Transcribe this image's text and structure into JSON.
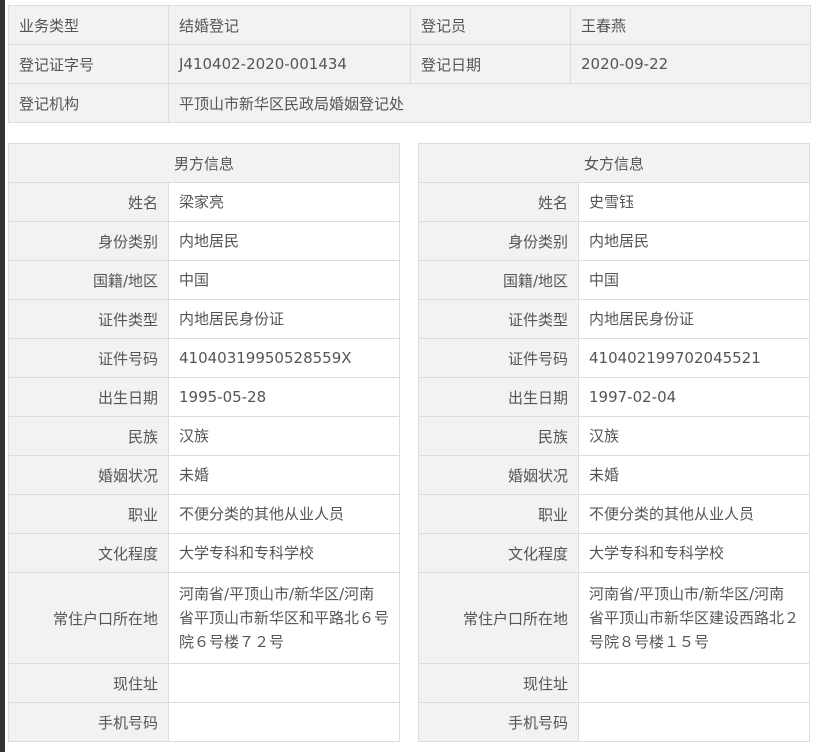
{
  "summary": {
    "business_type_label": "业务类型",
    "business_type": "结婚登记",
    "registrar_label": "登记员",
    "registrar": "王春燕",
    "cert_no_label": "登记证字号",
    "cert_no": "J410402-2020-001434",
    "date_label": "登记日期",
    "date": "2020-09-22",
    "office_label": "登记机构",
    "office": "平顶山市新华区民政局婚姻登记处"
  },
  "male": {
    "title": "男方信息",
    "rows": [
      {
        "label": "姓名",
        "value": "梁家亮"
      },
      {
        "label": "身份类别",
        "value": "内地居民"
      },
      {
        "label": "国籍/地区",
        "value": "中国"
      },
      {
        "label": "证件类型",
        "value": "内地居民身份证"
      },
      {
        "label": "证件号码",
        "value": "41040319950528559X"
      },
      {
        "label": "出生日期",
        "value": "1995-05-28"
      },
      {
        "label": "民族",
        "value": "汉族"
      },
      {
        "label": "婚姻状况",
        "value": "未婚"
      },
      {
        "label": "职业",
        "value": "不便分类的其他从业人员"
      },
      {
        "label": "文化程度",
        "value": "大学专科和专科学校"
      },
      {
        "label": "常住户口所在地",
        "value": "河南省/平顶山市/新华区/河南省平顶山市新华区和平路北６号院６号楼７２号"
      },
      {
        "label": "现住址",
        "value": ""
      },
      {
        "label": "手机号码",
        "value": ""
      }
    ]
  },
  "female": {
    "title": "女方信息",
    "rows": [
      {
        "label": "姓名",
        "value": "史雪钰"
      },
      {
        "label": "身份类别",
        "value": "内地居民"
      },
      {
        "label": "国籍/地区",
        "value": "中国"
      },
      {
        "label": "证件类型",
        "value": "内地居民身份证"
      },
      {
        "label": "证件号码",
        "value": "410402199702045521"
      },
      {
        "label": "出生日期",
        "value": "1997-02-04"
      },
      {
        "label": "民族",
        "value": "汉族"
      },
      {
        "label": "婚姻状况",
        "value": "未婚"
      },
      {
        "label": "职业",
        "value": "不便分类的其他从业人员"
      },
      {
        "label": "文化程度",
        "value": "大学专科和专科学校"
      },
      {
        "label": "常住户口所在地",
        "value": "河南省/平顶山市/新华区/河南省平顶山市新华区建设西路北２号院８号楼１５号"
      },
      {
        "label": "现住址",
        "value": ""
      },
      {
        "label": "手机号码",
        "value": ""
      }
    ]
  }
}
